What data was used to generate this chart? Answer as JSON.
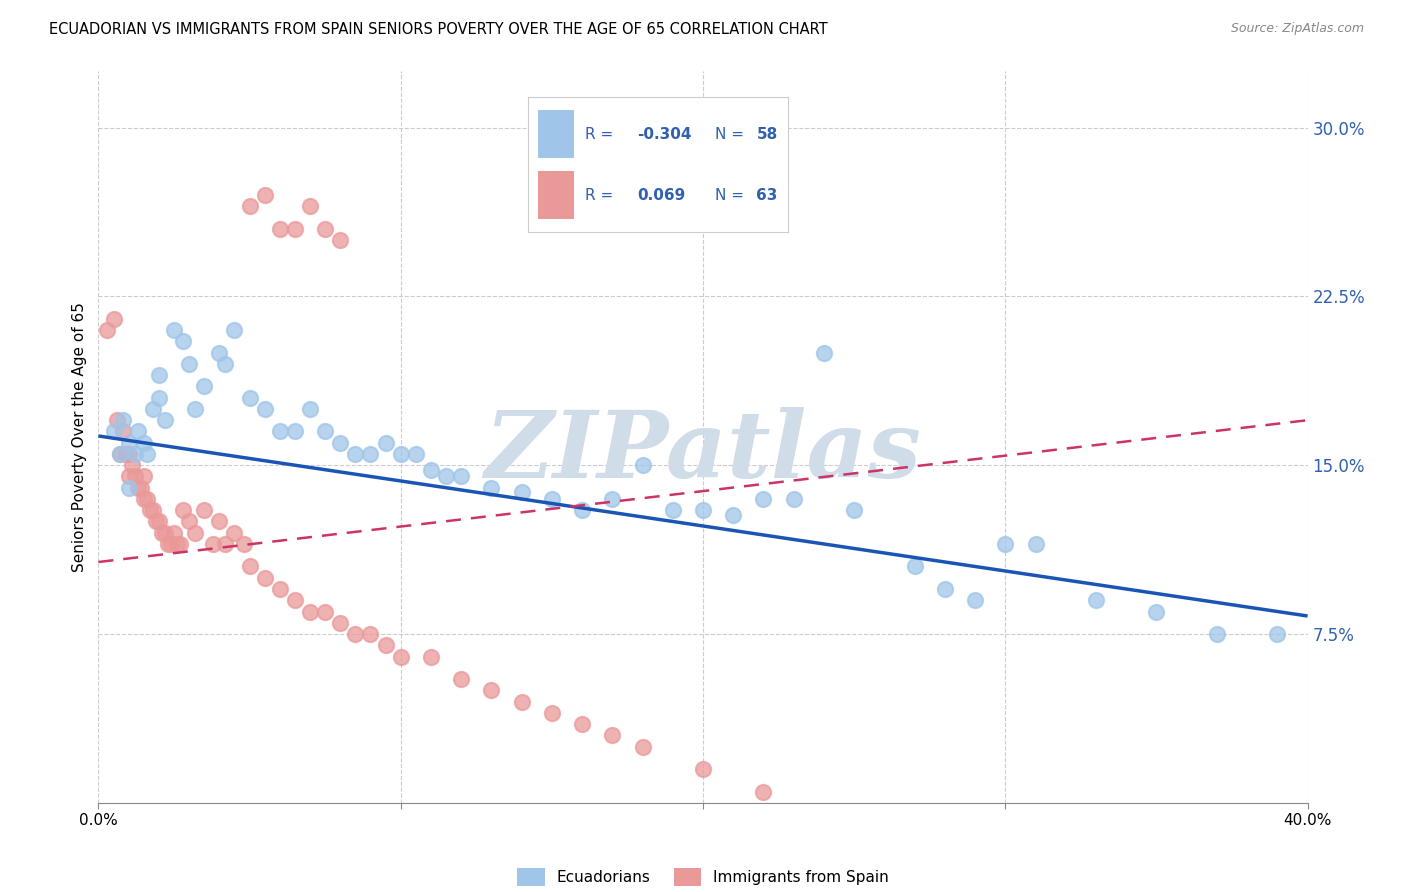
{
  "title": "ECUADORIAN VS IMMIGRANTS FROM SPAIN SENIORS POVERTY OVER THE AGE OF 65 CORRELATION CHART",
  "source": "Source: ZipAtlas.com",
  "ylabel": "Seniors Poverty Over the Age of 65",
  "xlim": [
    0.0,
    0.4
  ],
  "ylim": [
    0.0,
    0.325
  ],
  "yticks": [
    0.0,
    0.075,
    0.15,
    0.225,
    0.3
  ],
  "ytick_labels": [
    "",
    "7.5%",
    "15.0%",
    "22.5%",
    "30.0%"
  ],
  "xticks": [
    0.0,
    0.1,
    0.2,
    0.3,
    0.4
  ],
  "xtick_labels": [
    "0.0%",
    "",
    "",
    "",
    "40.0%"
  ],
  "r_blue": -0.304,
  "n_blue": 58,
  "r_pink": 0.069,
  "n_pink": 63,
  "blue_color": "#9fc5e8",
  "pink_color": "#ea9999",
  "trend_blue_color": "#1a55b5",
  "trend_pink_color": "#cc3366",
  "watermark_color": "#d0dce8",
  "watermark": "ZIPatlas",
  "legend_text_color": "#3060b0",
  "blue_trend_start_y": 0.163,
  "blue_trend_end_y": 0.083,
  "pink_trend_start_y": 0.107,
  "pink_trend_end_y": 0.17,
  "blue_x": [
    0.005,
    0.007,
    0.008,
    0.01,
    0.01,
    0.012,
    0.013,
    0.015,
    0.016,
    0.018,
    0.02,
    0.02,
    0.022,
    0.025,
    0.028,
    0.03,
    0.032,
    0.035,
    0.04,
    0.042,
    0.045,
    0.05,
    0.055,
    0.06,
    0.065,
    0.07,
    0.075,
    0.08,
    0.085,
    0.09,
    0.095,
    0.1,
    0.105,
    0.11,
    0.115,
    0.12,
    0.13,
    0.14,
    0.15,
    0.16,
    0.17,
    0.18,
    0.19,
    0.2,
    0.21,
    0.22,
    0.23,
    0.25,
    0.27,
    0.29,
    0.3,
    0.31,
    0.33,
    0.35,
    0.37,
    0.39,
    0.24,
    0.28
  ],
  "blue_y": [
    0.165,
    0.155,
    0.17,
    0.16,
    0.14,
    0.155,
    0.165,
    0.16,
    0.155,
    0.175,
    0.18,
    0.19,
    0.17,
    0.21,
    0.205,
    0.195,
    0.175,
    0.185,
    0.2,
    0.195,
    0.21,
    0.18,
    0.175,
    0.165,
    0.165,
    0.175,
    0.165,
    0.16,
    0.155,
    0.155,
    0.16,
    0.155,
    0.155,
    0.148,
    0.145,
    0.145,
    0.14,
    0.138,
    0.135,
    0.13,
    0.135,
    0.15,
    0.13,
    0.13,
    0.128,
    0.135,
    0.135,
    0.13,
    0.105,
    0.09,
    0.115,
    0.115,
    0.09,
    0.085,
    0.075,
    0.075,
    0.2,
    0.095
  ],
  "pink_x": [
    0.003,
    0.005,
    0.006,
    0.007,
    0.008,
    0.009,
    0.01,
    0.01,
    0.011,
    0.012,
    0.013,
    0.014,
    0.015,
    0.015,
    0.016,
    0.017,
    0.018,
    0.019,
    0.02,
    0.021,
    0.022,
    0.023,
    0.024,
    0.025,
    0.026,
    0.027,
    0.028,
    0.03,
    0.032,
    0.035,
    0.038,
    0.04,
    0.042,
    0.045,
    0.048,
    0.05,
    0.055,
    0.06,
    0.065,
    0.07,
    0.075,
    0.08,
    0.085,
    0.09,
    0.095,
    0.1,
    0.11,
    0.12,
    0.13,
    0.14,
    0.15,
    0.16,
    0.17,
    0.18,
    0.2,
    0.22,
    0.05,
    0.055,
    0.06,
    0.065,
    0.07,
    0.075,
    0.08
  ],
  "pink_y": [
    0.21,
    0.215,
    0.17,
    0.155,
    0.165,
    0.155,
    0.145,
    0.155,
    0.15,
    0.145,
    0.14,
    0.14,
    0.135,
    0.145,
    0.135,
    0.13,
    0.13,
    0.125,
    0.125,
    0.12,
    0.12,
    0.115,
    0.115,
    0.12,
    0.115,
    0.115,
    0.13,
    0.125,
    0.12,
    0.13,
    0.115,
    0.125,
    0.115,
    0.12,
    0.115,
    0.105,
    0.1,
    0.095,
    0.09,
    0.085,
    0.085,
    0.08,
    0.075,
    0.075,
    0.07,
    0.065,
    0.065,
    0.055,
    0.05,
    0.045,
    0.04,
    0.035,
    0.03,
    0.025,
    0.015,
    0.005,
    0.265,
    0.27,
    0.255,
    0.255,
    0.265,
    0.255,
    0.25
  ]
}
